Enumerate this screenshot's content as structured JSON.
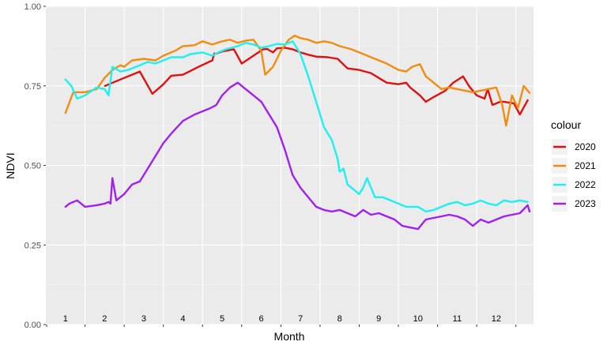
{
  "chart_data": {
    "type": "line",
    "xlabel": "Month",
    "ylabel": "NDVI",
    "ylim": [
      0,
      1
    ],
    "y_ticks": [
      "0.00",
      "0.25",
      "0.50",
      "0.75",
      "1.00"
    ],
    "y_tick_values": [
      0,
      0.25,
      0.5,
      0.75,
      1.0
    ],
    "month_labels": [
      "1",
      "2",
      "3",
      "4",
      "5",
      "6",
      "7",
      "8",
      "9",
      "10",
      "11",
      "12"
    ],
    "grid": true,
    "legend_title": "colour",
    "legend_position": "right",
    "series": [
      {
        "name": "2020",
        "color": "#e01010",
        "x": [
          2.01,
          2.4,
          2.9,
          3.22,
          3.5,
          3.7,
          4.0,
          4.4,
          4.75,
          4.8,
          4.82,
          5.0,
          5.3,
          5.5,
          5.8,
          6.05,
          6.15,
          6.3,
          6.4,
          6.6,
          6.8,
          7.0,
          7.2,
          7.4,
          7.7,
          7.95,
          8.2,
          8.5,
          8.8,
          9.0,
          9.2,
          9.5,
          9.7,
          9.8,
          10.05,
          10.2,
          10.4,
          10.7,
          10.9,
          11.15,
          11.3,
          11.5,
          11.7,
          11.78,
          11.9,
          12.1,
          12.2,
          12.45,
          12.6,
          12.8
        ],
        "y": [
          0.75,
          0.77,
          0.795,
          0.725,
          0.755,
          0.782,
          0.785,
          0.81,
          0.83,
          0.852,
          0.85,
          0.858,
          0.865,
          0.82,
          0.845,
          0.865,
          0.866,
          0.855,
          0.868,
          0.87,
          0.865,
          0.855,
          0.848,
          0.842,
          0.84,
          0.835,
          0.805,
          0.8,
          0.79,
          0.775,
          0.76,
          0.755,
          0.76,
          0.745,
          0.72,
          0.7,
          0.715,
          0.735,
          0.76,
          0.78,
          0.75,
          0.72,
          0.71,
          0.74,
          0.69,
          0.7,
          0.7,
          0.695,
          0.66,
          0.705
        ]
      },
      {
        "name": "2021",
        "color": "#f28c0f",
        "x": [
          1.0,
          1.2,
          1.5,
          1.8,
          2.0,
          2.2,
          2.4,
          2.5,
          2.7,
          3.0,
          3.3,
          3.5,
          3.8,
          4.0,
          4.3,
          4.5,
          4.75,
          5.0,
          5.2,
          5.4,
          5.6,
          5.8,
          6.0,
          6.1,
          6.3,
          6.5,
          6.7,
          6.85,
          7.0,
          7.2,
          7.4,
          7.6,
          7.8,
          8.0,
          8.3,
          8.6,
          8.9,
          9.2,
          9.5,
          9.7,
          9.85,
          10.05,
          10.2,
          10.4,
          10.6,
          10.8,
          11.0,
          11.2,
          11.4,
          11.6,
          11.8,
          12.0,
          12.15,
          12.25,
          12.4,
          12.55,
          12.7,
          12.85
        ],
        "y": [
          0.665,
          0.73,
          0.73,
          0.74,
          0.775,
          0.8,
          0.815,
          0.81,
          0.83,
          0.835,
          0.83,
          0.845,
          0.86,
          0.875,
          0.878,
          0.89,
          0.88,
          0.89,
          0.895,
          0.885,
          0.892,
          0.895,
          0.86,
          0.785,
          0.81,
          0.86,
          0.895,
          0.908,
          0.9,
          0.895,
          0.885,
          0.89,
          0.885,
          0.875,
          0.865,
          0.85,
          0.835,
          0.82,
          0.8,
          0.795,
          0.81,
          0.818,
          0.78,
          0.76,
          0.74,
          0.745,
          0.74,
          0.735,
          0.73,
          0.735,
          0.74,
          0.745,
          0.69,
          0.625,
          0.72,
          0.68,
          0.75,
          0.728
        ]
      },
      {
        "name": "2022",
        "color": "#1cf0f0",
        "x": [
          1.0,
          1.15,
          1.3,
          1.5,
          1.8,
          2.0,
          2.1,
          2.2,
          2.4,
          2.6,
          2.9,
          3.1,
          3.3,
          3.5,
          3.7,
          4.0,
          4.2,
          4.5,
          4.75,
          4.9,
          5.1,
          5.4,
          5.6,
          5.8,
          6.0,
          6.2,
          6.4,
          6.6,
          6.8,
          7.0,
          7.2,
          7.4,
          7.6,
          7.8,
          7.95,
          8.0,
          8.1,
          8.2,
          8.4,
          8.5,
          8.6,
          8.7,
          8.9,
          9.1,
          9.3,
          9.5,
          9.7,
          9.9,
          10.0,
          10.2,
          10.4,
          10.6,
          10.8,
          11.0,
          11.2,
          11.4,
          11.6,
          11.8,
          12.0,
          12.2,
          12.4,
          12.6,
          12.8
        ],
        "y": [
          0.77,
          0.75,
          0.71,
          0.72,
          0.745,
          0.74,
          0.72,
          0.81,
          0.795,
          0.8,
          0.815,
          0.825,
          0.82,
          0.83,
          0.84,
          0.84,
          0.85,
          0.855,
          0.845,
          0.855,
          0.865,
          0.875,
          0.885,
          0.88,
          0.87,
          0.875,
          0.882,
          0.88,
          0.89,
          0.85,
          0.78,
          0.7,
          0.62,
          0.58,
          0.52,
          0.48,
          0.49,
          0.44,
          0.42,
          0.41,
          0.43,
          0.46,
          0.4,
          0.4,
          0.39,
          0.38,
          0.37,
          0.37,
          0.37,
          0.355,
          0.36,
          0.37,
          0.38,
          0.385,
          0.375,
          0.38,
          0.39,
          0.38,
          0.375,
          0.39,
          0.385,
          0.39,
          0.385
        ]
      },
      {
        "name": "2023",
        "color": "#a020f0",
        "x": [
          1.0,
          1.1,
          1.3,
          1.5,
          1.8,
          2.0,
          2.1,
          2.15,
          2.2,
          2.3,
          2.5,
          2.7,
          2.9,
          3.0,
          3.1,
          3.3,
          3.5,
          3.7,
          4.0,
          4.3,
          4.5,
          4.7,
          4.85,
          5.0,
          5.2,
          5.4,
          5.6,
          5.8,
          6.0,
          6.2,
          6.4,
          6.6,
          6.8,
          7.0,
          7.2,
          7.4,
          7.6,
          7.8,
          8.0,
          8.2,
          8.4,
          8.6,
          8.8,
          9.0,
          9.2,
          9.4,
          9.6,
          9.8,
          10.0,
          10.2,
          10.4,
          10.6,
          10.8,
          11.0,
          11.2,
          11.4,
          11.6,
          11.8,
          12.0,
          12.2,
          12.4,
          12.6,
          12.8,
          12.85
        ],
        "y": [
          0.37,
          0.38,
          0.39,
          0.37,
          0.375,
          0.38,
          0.385,
          0.38,
          0.46,
          0.39,
          0.41,
          0.44,
          0.45,
          0.47,
          0.49,
          0.53,
          0.57,
          0.6,
          0.64,
          0.66,
          0.67,
          0.68,
          0.69,
          0.72,
          0.745,
          0.76,
          0.74,
          0.72,
          0.7,
          0.66,
          0.62,
          0.55,
          0.47,
          0.43,
          0.4,
          0.37,
          0.36,
          0.355,
          0.36,
          0.35,
          0.34,
          0.36,
          0.345,
          0.35,
          0.34,
          0.33,
          0.31,
          0.305,
          0.3,
          0.33,
          0.335,
          0.34,
          0.345,
          0.34,
          0.33,
          0.31,
          0.33,
          0.32,
          0.33,
          0.34,
          0.345,
          0.35,
          0.375,
          0.355
        ]
      }
    ]
  }
}
